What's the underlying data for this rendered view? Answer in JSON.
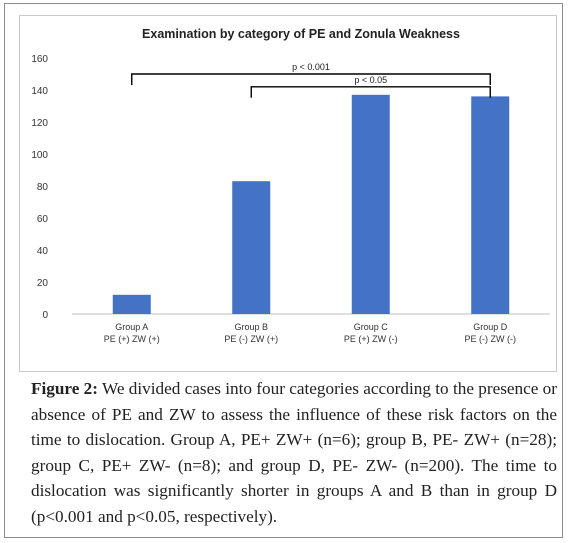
{
  "chart_data": {
    "type": "bar",
    "title": "Examination by category of PE and Zonula Weakness",
    "categories": [
      [
        "Group A",
        "PE (+) ZW (+)"
      ],
      [
        "Group B",
        "PE (-) ZW (+)"
      ],
      [
        "Group C",
        "PE (+) ZW (-)"
      ],
      [
        "Group D",
        "PE (-) ZW (-)"
      ]
    ],
    "values": [
      12,
      83,
      137,
      136
    ],
    "ylim": [
      0,
      160
    ],
    "yticks": [
      "0",
      "20",
      "40",
      "60",
      "80",
      "100",
      "120",
      "140",
      "160"
    ],
    "bar_color": "#4472C4",
    "grid": false,
    "annotations": [
      {
        "label": "p < 0.001",
        "from": 0,
        "to": 3,
        "level": 150
      },
      {
        "label": "p < 0.05",
        "from": 1,
        "to": 3,
        "level": 142
      }
    ]
  },
  "caption": {
    "label": "Figure 2:",
    "text": " We divided cases into four categories according to the presence or absence of PE and ZW to assess the influence of these risk factors on the time to dislocation. Group A, PE+ ZW+ (n=6); group B, PE- ZW+ (n=28); group C, PE+ ZW- (n=8); and group D, PE- ZW- (n=200). The time to dislocation was significantly shorter in groups A and B than in group D (p<0.001 and p<0.05, respectively)."
  }
}
